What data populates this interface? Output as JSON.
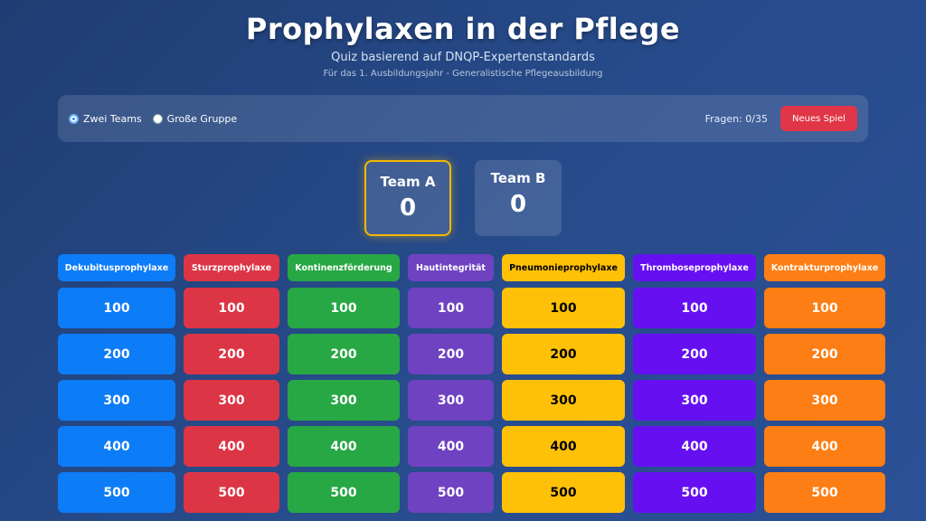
{
  "header": {
    "title": "Prophylaxen in der Pflege",
    "subtitle": "Quiz basierend auf DNQP-Expertenstandards",
    "subsubtitle": "Für das 1. Ausbildungsjahr - Generalistische Pflegeausbildung"
  },
  "controls": {
    "mode_options": [
      {
        "label": "Zwei Teams",
        "checked": true
      },
      {
        "label": "Große Gruppe",
        "checked": false
      }
    ],
    "question_count": "Fragen: 0/35",
    "new_game_label": "Neues Spiel"
  },
  "teams": [
    {
      "name": "Team A",
      "score": "0",
      "active": true
    },
    {
      "name": "Team B",
      "score": "0",
      "active": false
    }
  ],
  "board": {
    "categories": [
      {
        "name": "Dekubitusprophylaxe",
        "color": "#0d7cf7",
        "text_color": "#ffffff"
      },
      {
        "name": "Sturzprophylaxe",
        "color": "#dc3545",
        "text_color": "#ffffff"
      },
      {
        "name": "Kontinenzförderung",
        "color": "#28a745",
        "text_color": "#ffffff"
      },
      {
        "name": "Hautintegrität",
        "color": "#6f42c1",
        "text_color": "#ffffff"
      },
      {
        "name": "Pneumonieprophylaxe",
        "color": "#ffc107",
        "text_color": "#000000"
      },
      {
        "name": "Thromboseprophylaxe",
        "color": "#6610f2",
        "text_color": "#ffffff"
      },
      {
        "name": "Kontrakturprophylaxe",
        "color": "#fd7e14",
        "text_color": "#ffffff"
      }
    ],
    "point_values": [
      "100",
      "200",
      "300",
      "400",
      "500"
    ]
  }
}
